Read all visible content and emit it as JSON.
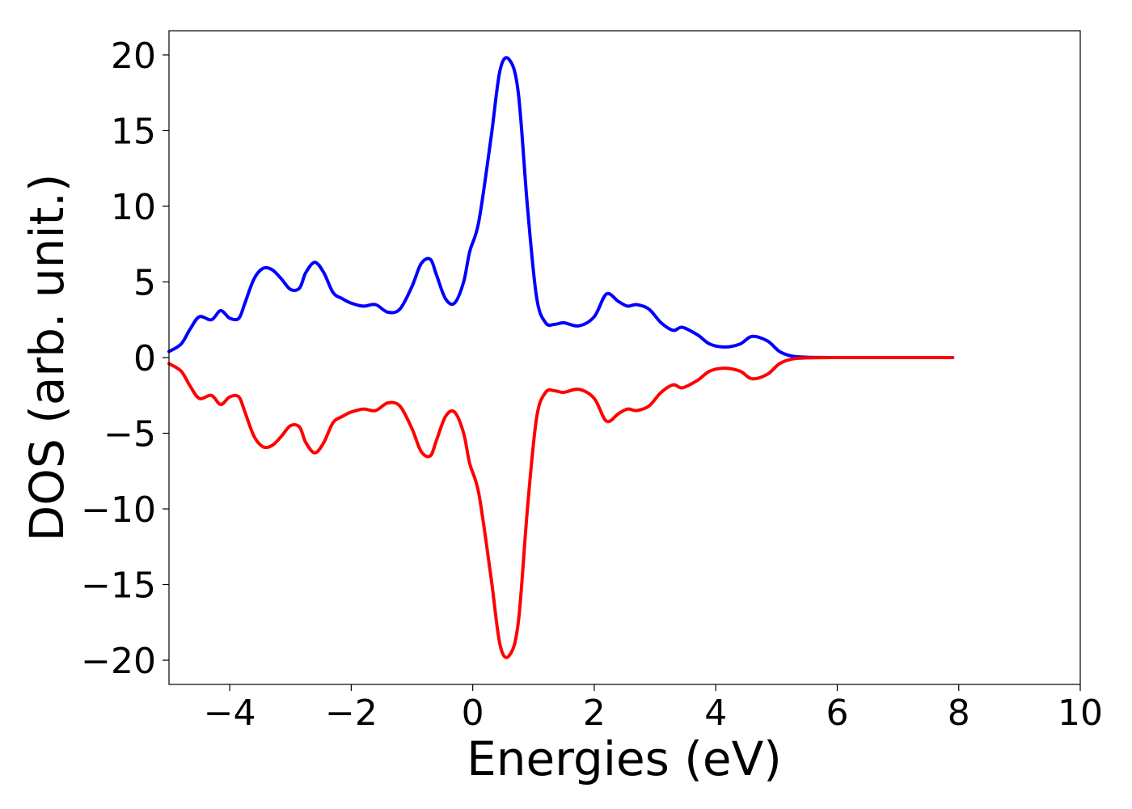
{
  "chart_data": {
    "type": "line",
    "title": "",
    "xlabel": "Energies (eV)",
    "ylabel": "DOS (arb. unit.)",
    "xlim": [
      -5,
      10
    ],
    "ylim": [
      -21.6,
      21.6
    ],
    "grid": false,
    "legend": "none",
    "xticks": [
      -4,
      -2,
      0,
      2,
      4,
      6,
      8,
      10
    ],
    "xtick_labels": [
      "−4",
      "−2",
      "0",
      "2",
      "4",
      "6",
      "8",
      "10"
    ],
    "yticks": [
      20,
      15,
      10,
      5,
      0,
      -5,
      -10,
      -15,
      -20
    ],
    "ytick_labels": [
      "20",
      "15",
      "10",
      "5",
      "0",
      "−5",
      "−10",
      "−15",
      "−20"
    ],
    "series": [
      {
        "color": "#0000ff",
        "x": [
          -5.0,
          -4.8,
          -4.65,
          -4.5,
          -4.3,
          -4.15,
          -4.0,
          -3.85,
          -3.75,
          -3.6,
          -3.45,
          -3.3,
          -3.15,
          -3.0,
          -2.85,
          -2.75,
          -2.6,
          -2.45,
          -2.3,
          -2.15,
          -2.0,
          -1.8,
          -1.6,
          -1.4,
          -1.2,
          -1.0,
          -0.85,
          -0.7,
          -0.6,
          -0.45,
          -0.3,
          -0.15,
          -0.05,
          0.1,
          0.3,
          0.45,
          0.6,
          0.75,
          0.9,
          1.05,
          1.2,
          1.35,
          1.5,
          1.75,
          2.0,
          2.2,
          2.4,
          2.55,
          2.7,
          2.9,
          3.1,
          3.3,
          3.45,
          3.7,
          3.9,
          4.15,
          4.4,
          4.6,
          4.85,
          5.05,
          5.25,
          5.5,
          6.0,
          7.0,
          7.9
        ],
        "y": [
          0.4,
          0.9,
          1.9,
          2.7,
          2.5,
          3.1,
          2.6,
          2.6,
          3.6,
          5.2,
          5.9,
          5.8,
          5.2,
          4.5,
          4.6,
          5.6,
          6.3,
          5.6,
          4.3,
          3.9,
          3.6,
          3.4,
          3.5,
          3.0,
          3.2,
          4.7,
          6.2,
          6.5,
          5.5,
          3.9,
          3.6,
          5.0,
          7.0,
          9.0,
          14.5,
          19.0,
          19.7,
          17.5,
          10.0,
          4.0,
          2.3,
          2.2,
          2.3,
          2.1,
          2.7,
          4.2,
          3.7,
          3.4,
          3.5,
          3.2,
          2.3,
          1.8,
          2.0,
          1.5,
          0.9,
          0.7,
          0.9,
          1.4,
          1.1,
          0.4,
          0.1,
          0.02,
          0.0,
          0.0,
          0.0
        ]
      },
      {
        "color": "#ff0000",
        "x": [
          -5.0,
          -4.8,
          -4.65,
          -4.5,
          -4.3,
          -4.15,
          -4.0,
          -3.85,
          -3.75,
          -3.6,
          -3.45,
          -3.3,
          -3.15,
          -3.0,
          -2.85,
          -2.75,
          -2.6,
          -2.45,
          -2.3,
          -2.15,
          -2.0,
          -1.8,
          -1.6,
          -1.4,
          -1.2,
          -1.0,
          -0.85,
          -0.7,
          -0.6,
          -0.45,
          -0.3,
          -0.15,
          -0.05,
          0.1,
          0.3,
          0.45,
          0.6,
          0.75,
          0.9,
          1.05,
          1.2,
          1.35,
          1.5,
          1.75,
          2.0,
          2.2,
          2.4,
          2.55,
          2.7,
          2.9,
          3.1,
          3.3,
          3.45,
          3.7,
          3.9,
          4.15,
          4.4,
          4.6,
          4.85,
          5.05,
          5.25,
          5.5,
          6.0,
          7.0,
          7.9
        ],
        "y": [
          -0.4,
          -0.9,
          -1.9,
          -2.7,
          -2.5,
          -3.1,
          -2.6,
          -2.6,
          -3.6,
          -5.2,
          -5.9,
          -5.8,
          -5.2,
          -4.5,
          -4.6,
          -5.6,
          -6.3,
          -5.6,
          -4.3,
          -3.9,
          -3.6,
          -3.4,
          -3.5,
          -3.0,
          -3.2,
          -4.7,
          -6.2,
          -6.5,
          -5.5,
          -3.9,
          -3.6,
          -5.0,
          -7.0,
          -9.0,
          -14.5,
          -19.0,
          -19.7,
          -17.5,
          -10.0,
          -4.0,
          -2.3,
          -2.2,
          -2.3,
          -2.1,
          -2.7,
          -4.2,
          -3.7,
          -3.4,
          -3.5,
          -3.2,
          -2.3,
          -1.8,
          -2.0,
          -1.5,
          -0.9,
          -0.7,
          -0.9,
          -1.4,
          -1.1,
          -0.4,
          -0.1,
          -0.02,
          0.0,
          0.0,
          0.0
        ]
      }
    ]
  }
}
